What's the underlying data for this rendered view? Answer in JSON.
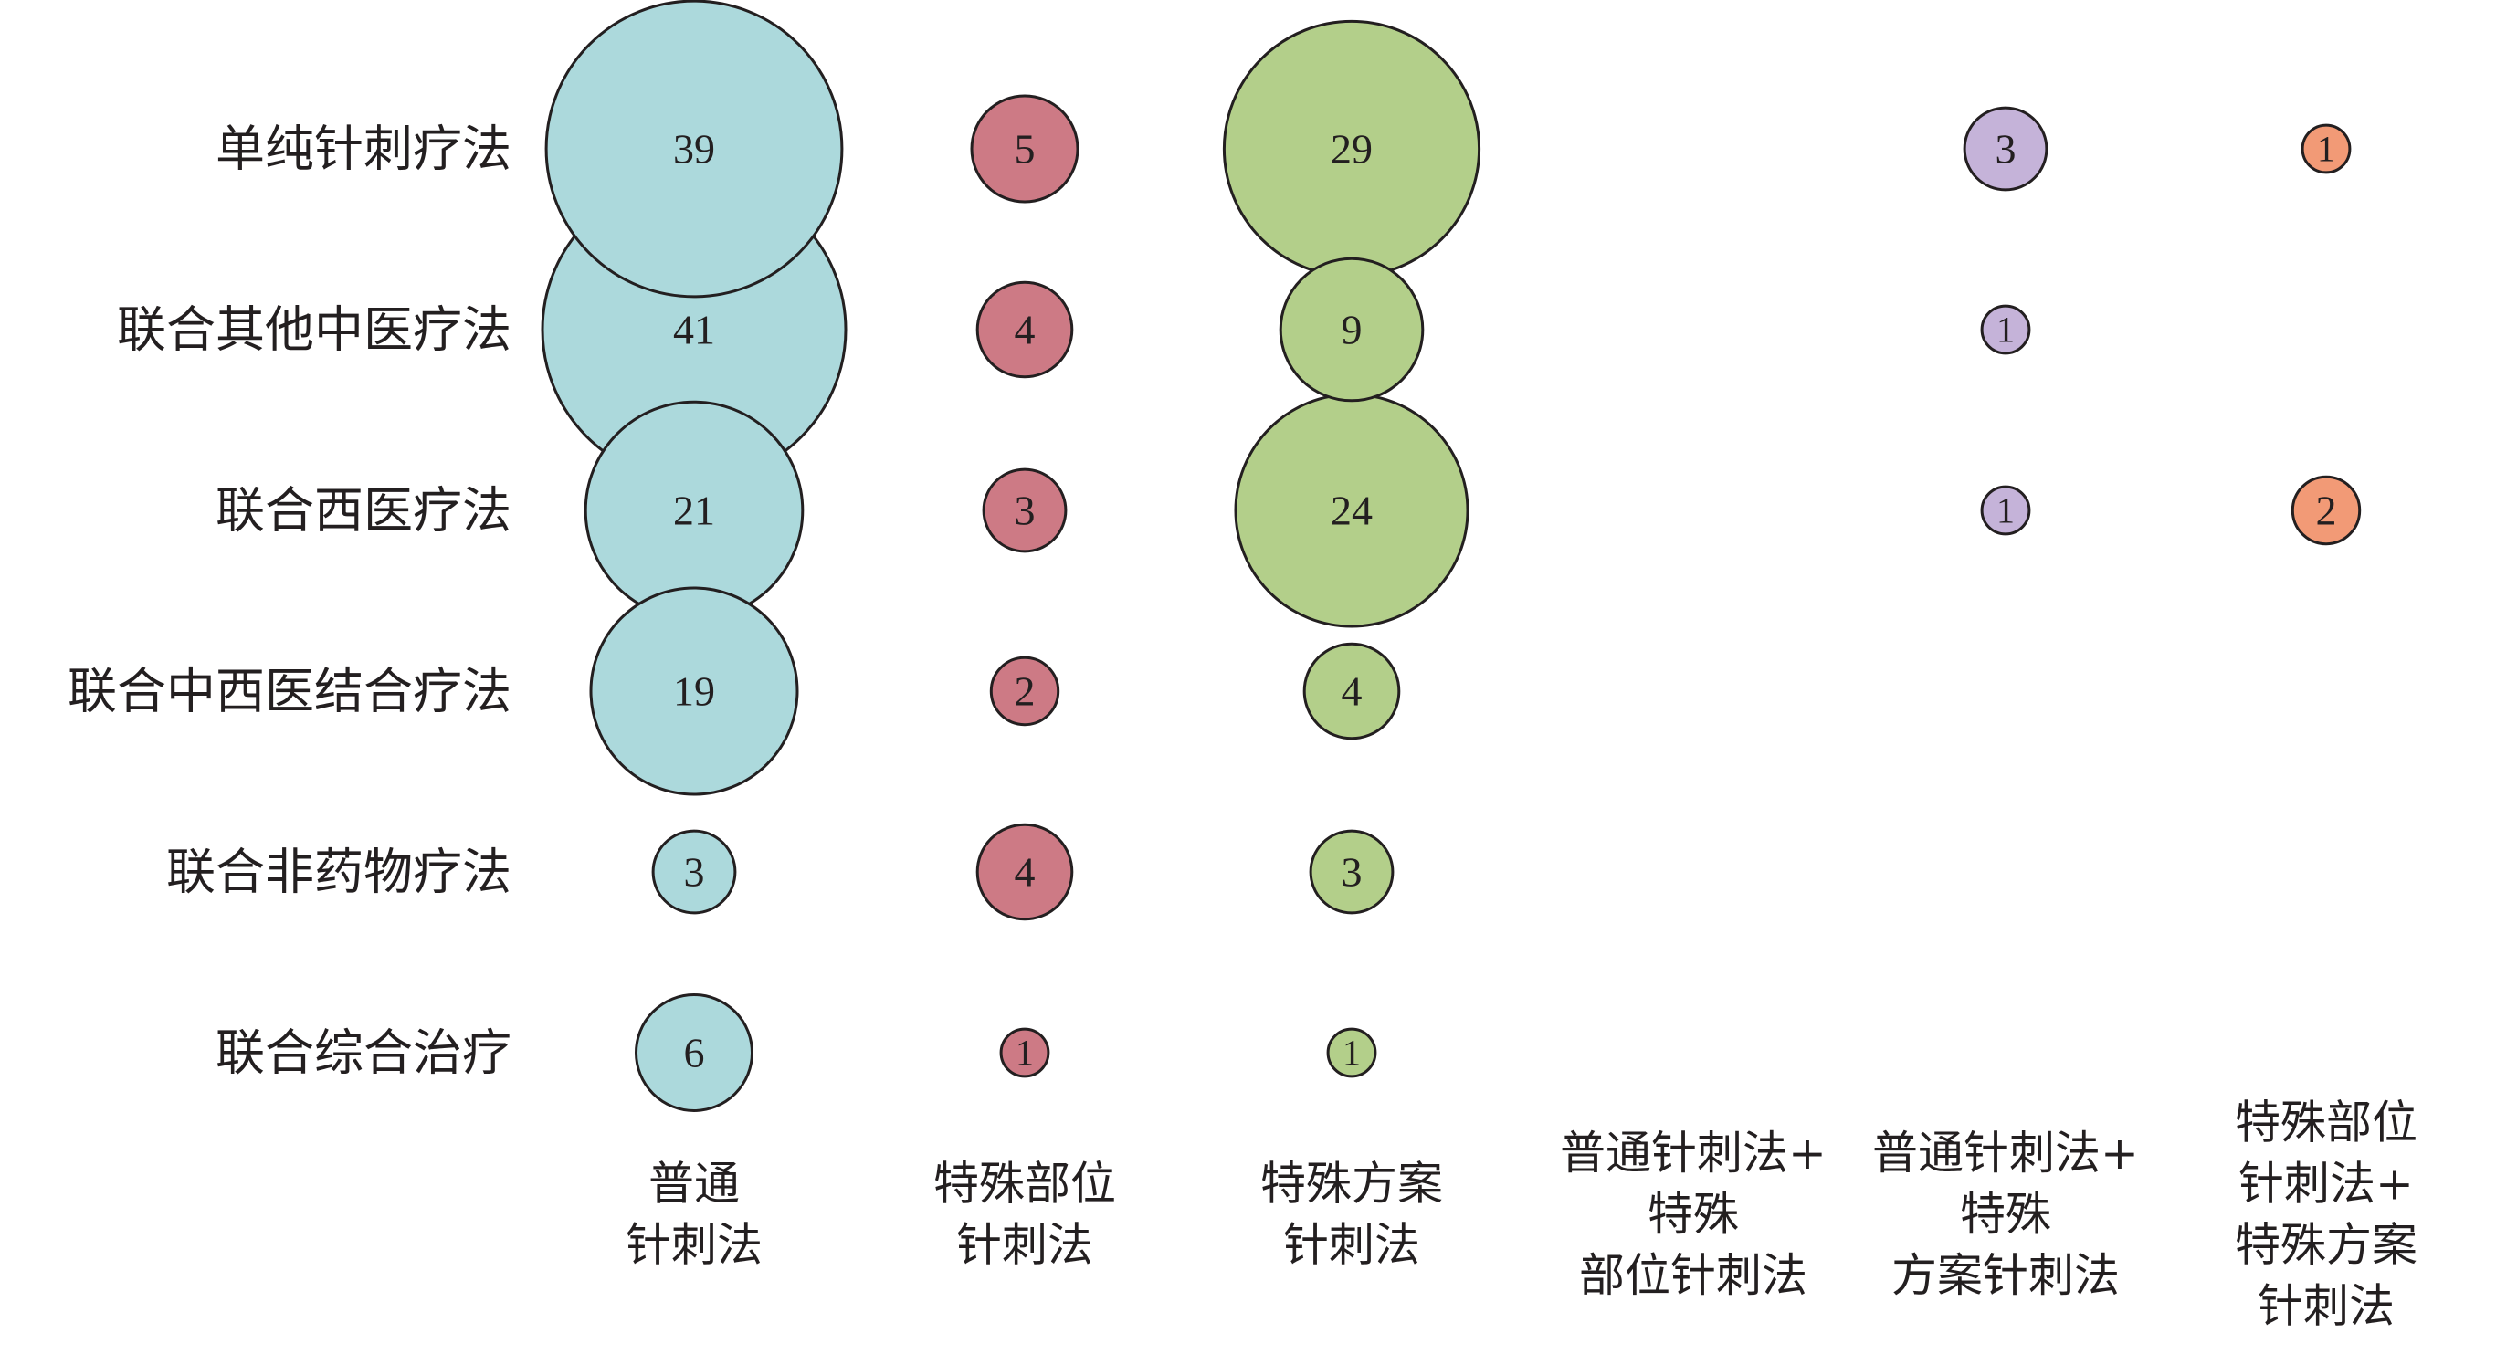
{
  "chart_data": {
    "type": "bubble-matrix",
    "title": "",
    "rows": [
      "单纯针刺疗法",
      "联合其他中医疗法",
      "联合西医疗法",
      "联合中西医结合疗法",
      "联合非药物疗法",
      "联合综合治疗"
    ],
    "columns": [
      {
        "name": "普通针刺法",
        "label_lines": [
          "普通",
          "针刺法"
        ],
        "color": "#acd9dc"
      },
      {
        "name": "特殊部位针刺法",
        "label_lines": [
          "特殊部位",
          "针刺法"
        ],
        "color": "#cd7a85"
      },
      {
        "name": "特殊方案针刺法",
        "label_lines": [
          "特殊方案",
          "针刺法"
        ],
        "color": "#b3cf8a"
      },
      {
        "name": "普通针刺法+特殊部位针刺法",
        "label_lines": [
          "普通针刺法+",
          "特殊",
          "部位针刺法"
        ],
        "color": "#c5b3d9"
      },
      {
        "name": "普通针刺法+特殊方案针刺法",
        "label_lines": [
          "普通针刺法+",
          "特殊",
          "方案针刺法"
        ],
        "color": "#c5b3d9"
      },
      {
        "name": "特殊部位针刺法+特殊方案针刺法",
        "label_lines": [
          "特殊部位",
          "针刺法+",
          "特殊方案",
          "针刺法"
        ],
        "color": "#f29a76"
      }
    ],
    "values": [
      [
        39,
        5,
        29,
        null,
        3,
        1
      ],
      [
        41,
        4,
        9,
        null,
        1,
        null
      ],
      [
        21,
        3,
        24,
        null,
        1,
        2
      ],
      [
        19,
        2,
        4,
        null,
        null,
        null
      ],
      [
        3,
        4,
        3,
        null,
        null,
        null
      ],
      [
        6,
        1,
        1,
        null,
        null,
        null
      ]
    ]
  }
}
